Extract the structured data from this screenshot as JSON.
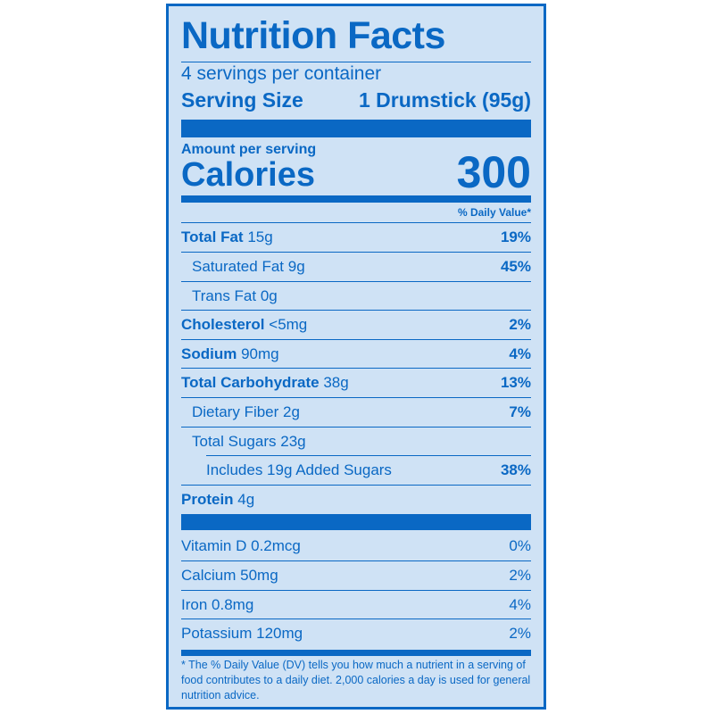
{
  "title": "Nutrition Facts",
  "servings_per_container": "4 servings per container",
  "serving_size_label": "Serving Size",
  "serving_size_value": "1 Drumstick (95g)",
  "amount_per_serving": "Amount per serving",
  "calories_label": "Calories",
  "calories_value": "300",
  "daily_value_header": "% Daily Value*",
  "nutrients": [
    {
      "name": "Total Fat",
      "amount": "15g",
      "dv": "19%"
    },
    {
      "name": "Saturated Fat",
      "amount": "9g",
      "dv": "45%"
    },
    {
      "name": "Trans Fat",
      "amount": "0g",
      "dv": ""
    },
    {
      "name": "Cholesterol",
      "amount": "<5mg",
      "dv": "2%"
    },
    {
      "name": "Sodium",
      "amount": "90mg",
      "dv": "4%"
    },
    {
      "name": "Total Carbohydrate",
      "amount": "38g",
      "dv": "13%"
    },
    {
      "name": "Dietary Fiber",
      "amount": "2g",
      "dv": "7%"
    },
    {
      "name": "Total Sugars",
      "amount": "23g",
      "dv": ""
    },
    {
      "name": "Includes 19g Added Sugars",
      "amount": "",
      "dv": "38%"
    },
    {
      "name": "Protein",
      "amount": "4g",
      "dv": ""
    }
  ],
  "vitamins": [
    {
      "name": "Vitamin D",
      "amount": "0.2mcg",
      "dv": "0%"
    },
    {
      "name": "Calcium",
      "amount": "50mg",
      "dv": "2%"
    },
    {
      "name": "Iron",
      "amount": "0.8mg",
      "dv": "4%"
    },
    {
      "name": "Potassium",
      "amount": "120mg",
      "dv": "2%"
    }
  ],
  "footnote": "* The % Daily Value (DV) tells you how much a nutrient in a serving of food contributes to a daily diet. 2,000 calories a day is used for general nutrition advice.",
  "colors": {
    "ink": "#0a68c4",
    "panel": "#cfe2f5"
  }
}
